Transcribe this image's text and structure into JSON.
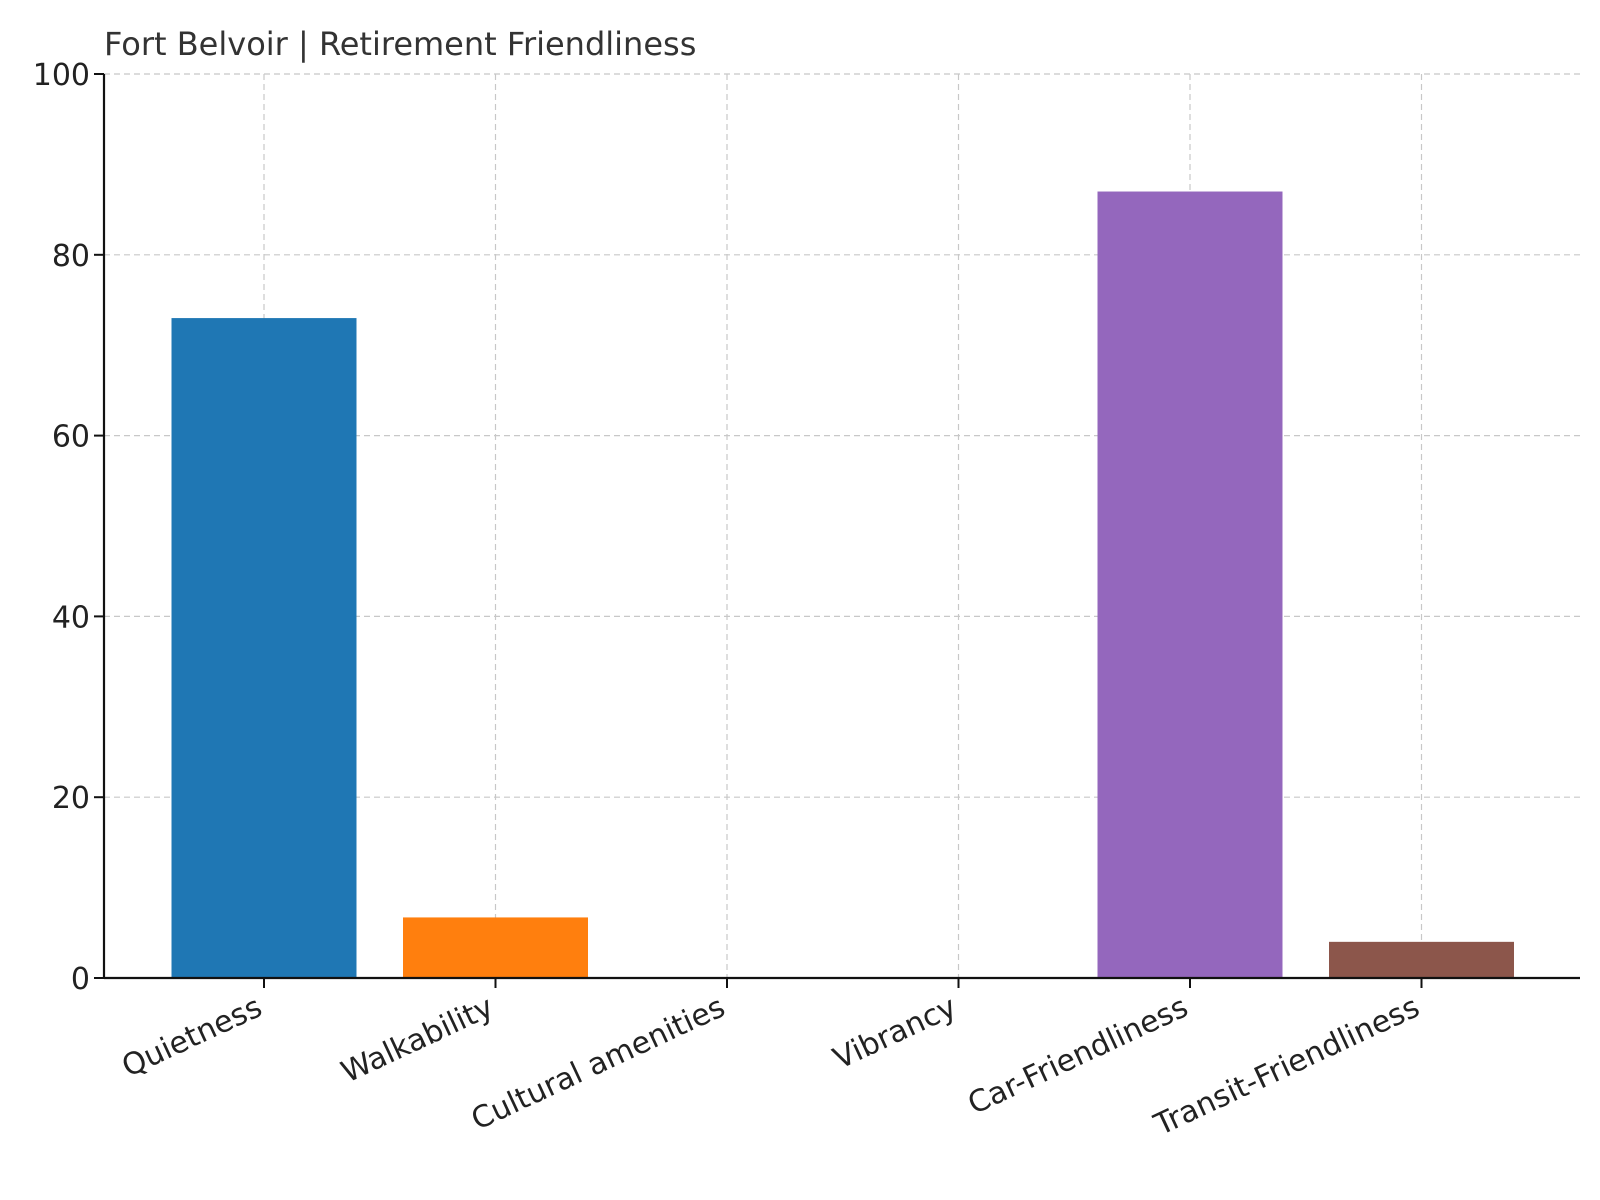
{
  "chart_data": {
    "type": "bar",
    "title": "Fort Belvoir | Retirement Friendliness",
    "xlabel": "",
    "ylabel": "",
    "categories": [
      "Quietness",
      "Walkability",
      "Cultural amenities",
      "Vibrancy",
      "Car-Friendliness",
      "Transit-Friendliness"
    ],
    "values": [
      73,
      6.7,
      0,
      0,
      87,
      4
    ],
    "colors": [
      "#1f77b4",
      "#ff7f0e",
      "#2ca02c",
      "#d62728",
      "#9467bd",
      "#8c564b"
    ],
    "ylim": [
      0,
      100
    ],
    "yticks": [
      "0",
      "20",
      "40",
      "60",
      "80",
      "100"
    ],
    "grid": true,
    "legend": "none"
  }
}
